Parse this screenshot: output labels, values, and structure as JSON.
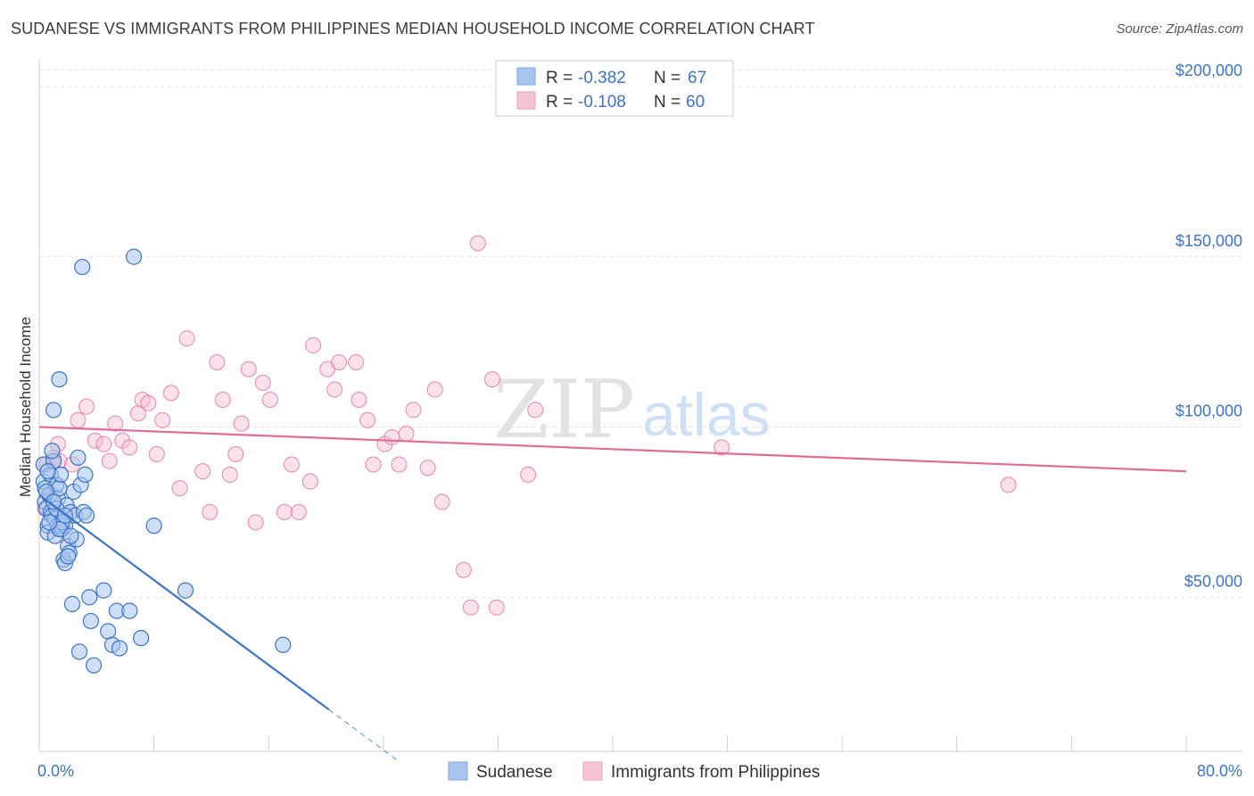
{
  "header": {
    "title": "SUDANESE VS IMMIGRANTS FROM PHILIPPINES MEDIAN HOUSEHOLD INCOME CORRELATION CHART",
    "source": "Source: ZipAtlas.com"
  },
  "watermark": {
    "zip": "ZIP",
    "atlas": "atlas"
  },
  "legend": {
    "r_label": "R =",
    "n_label": "N =",
    "sudanese": {
      "r": "-0.382",
      "n": "67"
    },
    "philippines": {
      "r": "-0.108",
      "n": "60"
    }
  },
  "colors": {
    "blue": "#3d74c8",
    "blue_fill": "#a7c6ef",
    "pink": "#e36b94",
    "pink_fill": "#f6bccf"
  },
  "chart_data": {
    "type": "scatter",
    "title": "SUDANESE VS IMMIGRANTS FROM PHILIPPINES MEDIAN HOUSEHOLD INCOME CORRELATION CHART",
    "ylabel": "Median Household Income",
    "xlabel": "",
    "xlim": [
      0,
      80
    ],
    "ylim": [
      5000,
      210000
    ],
    "x_tick_labels": {
      "min": "0.0%",
      "max": "80.0%"
    },
    "y_ticks": [
      {
        "value": 50000,
        "label": "$50,000"
      },
      {
        "value": 100000,
        "label": "$100,000"
      },
      {
        "value": 150000,
        "label": "$150,000"
      },
      {
        "value": 200000,
        "label": "$200,000"
      }
    ],
    "legend_position": "bottom-center",
    "series": [
      {
        "name": "Sudanese",
        "r": -0.382,
        "n": 67,
        "trend": {
          "x0": 0,
          "y0": 80000,
          "x1": 20.2,
          "y1": 17000,
          "dash_to_x": 25
        },
        "points": [
          [
            0.3,
            89000
          ],
          [
            0.3,
            84000
          ],
          [
            0.4,
            82000
          ],
          [
            0.4,
            78000
          ],
          [
            0.5,
            76000
          ],
          [
            0.6,
            71000
          ],
          [
            0.6,
            69000
          ],
          [
            0.7,
            80000
          ],
          [
            0.8,
            86000
          ],
          [
            0.8,
            75000
          ],
          [
            0.9,
            74000
          ],
          [
            1.0,
            105000
          ],
          [
            1.0,
            90000
          ],
          [
            1.1,
            73000
          ],
          [
            1.1,
            68000
          ],
          [
            1.2,
            83000
          ],
          [
            1.3,
            79000
          ],
          [
            1.3,
            71000
          ],
          [
            1.4,
            114000
          ],
          [
            1.4,
            82000
          ],
          [
            1.5,
            71000
          ],
          [
            1.5,
            86000
          ],
          [
            1.6,
            70000
          ],
          [
            1.7,
            73000
          ],
          [
            1.7,
            61000
          ],
          [
            1.8,
            60000
          ],
          [
            1.8,
            71000
          ],
          [
            1.9,
            77000
          ],
          [
            2.0,
            65000
          ],
          [
            2.1,
            63000
          ],
          [
            2.2,
            75000
          ],
          [
            2.3,
            48000
          ],
          [
            2.4,
            81000
          ],
          [
            2.5,
            74000
          ],
          [
            2.6,
            67000
          ],
          [
            2.7,
            91000
          ],
          [
            2.8,
            34000
          ],
          [
            2.9,
            83000
          ],
          [
            3.0,
            147000
          ],
          [
            3.1,
            75000
          ],
          [
            3.2,
            86000
          ],
          [
            3.3,
            74000
          ],
          [
            3.5,
            50000
          ],
          [
            3.6,
            43000
          ],
          [
            3.8,
            30000
          ],
          [
            4.5,
            52000
          ],
          [
            4.8,
            40000
          ],
          [
            5.1,
            36000
          ],
          [
            5.4,
            46000
          ],
          [
            5.6,
            35000
          ],
          [
            6.3,
            46000
          ],
          [
            6.6,
            150000
          ],
          [
            7.1,
            38000
          ],
          [
            8.0,
            71000
          ],
          [
            10.2,
            52000
          ],
          [
            17.0,
            36000
          ],
          [
            0.9,
            93000
          ],
          [
            1.2,
            76000
          ],
          [
            1.6,
            72000
          ],
          [
            2.0,
            62000
          ],
          [
            0.5,
            81000
          ],
          [
            1.4,
            70000
          ],
          [
            2.2,
            68000
          ],
          [
            0.7,
            72000
          ],
          [
            1.0,
            78000
          ],
          [
            1.8,
            74000
          ],
          [
            0.6,
            87000
          ]
        ]
      },
      {
        "name": "Immigrants from Philippines",
        "r": -0.108,
        "n": 60,
        "trend": {
          "x0": 0,
          "y0": 100000,
          "x1": 80,
          "y1": 87000
        },
        "points": [
          [
            0.4,
            76000
          ],
          [
            0.5,
            89000
          ],
          [
            0.9,
            80000
          ],
          [
            1.0,
            91000
          ],
          [
            1.3,
            95000
          ],
          [
            1.4,
            90000
          ],
          [
            2.3,
            89000
          ],
          [
            2.7,
            102000
          ],
          [
            3.3,
            106000
          ],
          [
            3.9,
            96000
          ],
          [
            4.5,
            95000
          ],
          [
            4.9,
            90000
          ],
          [
            5.3,
            101000
          ],
          [
            5.8,
            96000
          ],
          [
            6.3,
            94000
          ],
          [
            6.9,
            104000
          ],
          [
            7.2,
            108000
          ],
          [
            7.6,
            107000
          ],
          [
            8.2,
            92000
          ],
          [
            8.6,
            102000
          ],
          [
            9.2,
            110000
          ],
          [
            9.8,
            82000
          ],
          [
            10.3,
            126000
          ],
          [
            11.4,
            87000
          ],
          [
            11.9,
            75000
          ],
          [
            12.4,
            119000
          ],
          [
            12.8,
            108000
          ],
          [
            13.3,
            86000
          ],
          [
            13.7,
            92000
          ],
          [
            14.1,
            101000
          ],
          [
            14.6,
            117000
          ],
          [
            15.1,
            72000
          ],
          [
            15.6,
            113000
          ],
          [
            16.1,
            108000
          ],
          [
            17.1,
            75000
          ],
          [
            17.6,
            89000
          ],
          [
            18.1,
            75000
          ],
          [
            18.9,
            84000
          ],
          [
            19.1,
            124000
          ],
          [
            20.1,
            117000
          ],
          [
            20.6,
            111000
          ],
          [
            20.9,
            119000
          ],
          [
            22.1,
            119000
          ],
          [
            22.3,
            108000
          ],
          [
            22.9,
            102000
          ],
          [
            23.3,
            89000
          ],
          [
            24.1,
            95000
          ],
          [
            24.6,
            97000
          ],
          [
            25.1,
            89000
          ],
          [
            25.6,
            98000
          ],
          [
            26.1,
            105000
          ],
          [
            27.1,
            88000
          ],
          [
            27.6,
            111000
          ],
          [
            28.1,
            78000
          ],
          [
            29.6,
            58000
          ],
          [
            30.1,
            47000
          ],
          [
            30.6,
            154000
          ],
          [
            31.6,
            114000
          ],
          [
            31.9,
            47000
          ],
          [
            34.1,
            86000
          ]
        ]
      }
    ],
    "extra_points_note": "Philippines series also includes points near x=34.6,y=105000; x=47.6,y=94000; x=67.6,y=83000"
  },
  "bottom_legend": {
    "sudanese_label": "Sudanese",
    "philippines_label": "Immigrants from Philippines"
  }
}
